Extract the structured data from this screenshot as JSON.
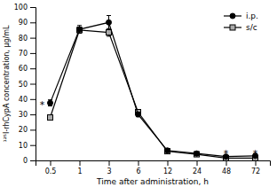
{
  "chart_data": {
    "type": "line",
    "xlabel": "Time after administration, h",
    "ylabel": "¹²⁵I-rhCypA concentration, μg/mL",
    "categories": [
      "0.5",
      "1",
      "3",
      "6",
      "12",
      "24",
      "48",
      "72"
    ],
    "series": [
      {
        "name": "i.p.",
        "color": "black",
        "marker": "circle",
        "line_style": "solid",
        "values": [
          37.5,
          85.5,
          90.0,
          30.0,
          6.5,
          4.5,
          2.5,
          3.0
        ],
        "errors": [
          2.0,
          2.5,
          4.5,
          1.5,
          0.8,
          0.5,
          0.4,
          0.5
        ]
      },
      {
        "name": "s/c",
        "color": "black",
        "marker": "square",
        "line_style": "solid",
        "values": [
          28.0,
          85.0,
          83.5,
          31.5,
          6.0,
          4.0,
          1.5,
          1.5
        ],
        "errors": [
          1.0,
          2.0,
          2.5,
          1.5,
          0.5,
          0.5,
          0.3,
          0.3
        ]
      }
    ],
    "annotations": [
      {
        "text": "*",
        "series": 0,
        "index": 0,
        "position": "left"
      },
      {
        "text": "*",
        "series": 1,
        "index": 6,
        "position": "above"
      },
      {
        "text": "*",
        "series": 1,
        "index": 7,
        "position": "above"
      }
    ],
    "ylim": [
      0,
      100
    ],
    "yticks": [
      0,
      10,
      20,
      30,
      40,
      50,
      60,
      70,
      80,
      90,
      100
    ],
    "grid": false,
    "legend": "upper right"
  }
}
